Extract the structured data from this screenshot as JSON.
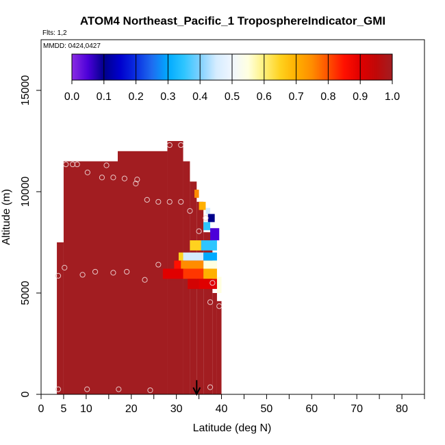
{
  "chart_data": {
    "type": "heatmap",
    "title": "ATOM4 Northeast_Pacific_1 TroposphereIndicator_GMI",
    "flights_label": "Flts: 1,2",
    "dates_label": "MMDD: 0424,0427",
    "xlabel": "Latitude (deg N)",
    "ylabel": "Altitude (m)",
    "xlim": [
      0,
      85
    ],
    "ylim": [
      0,
      17500
    ],
    "x_ticks": [
      0,
      5,
      10,
      20,
      30,
      40,
      50,
      60,
      70,
      80
    ],
    "x_minor_ticks": [
      15,
      25,
      35,
      45,
      55,
      65,
      75,
      85
    ],
    "y_ticks": [
      0,
      5000,
      10000,
      15000
    ],
    "colorbar": {
      "ticks": [
        "0.0",
        "0.1",
        "0.2",
        "0.3",
        "0.4",
        "0.5",
        "0.6",
        "0.7",
        "0.8",
        "0.9",
        "1.0"
      ],
      "range": [
        0,
        1
      ],
      "placement": "top inside plot"
    },
    "background_value": 1.0,
    "profiles": [
      {
        "lat_min": 3.5,
        "lat_max": 5.0,
        "alt_min": 0,
        "alt_max": 7500,
        "value": 1.0
      },
      {
        "lat_min": 5.0,
        "lat_max": 17.0,
        "alt_min": 0,
        "alt_max": 11500,
        "value": 1.0
      },
      {
        "lat_min": 17.0,
        "lat_max": 28.0,
        "alt_min": 0,
        "alt_max": 12000,
        "value": 1.0
      },
      {
        "lat_min": 28.0,
        "lat_max": 31.5,
        "alt_min": 0,
        "alt_max": 12500,
        "value": 1.0
      },
      {
        "lat_min": 31.5,
        "lat_max": 33.0,
        "alt_min": 0,
        "alt_max": 11500,
        "value": 1.0
      },
      {
        "lat_min": 33.0,
        "lat_max": 34.5,
        "alt_min": 0,
        "alt_max": 10500,
        "value": 1.0
      },
      {
        "lat_min": 34.5,
        "lat_max": 36.0,
        "alt_min": 0,
        "alt_max": 9500,
        "value": 1.0
      },
      {
        "lat_min": 36.0,
        "lat_max": 38.0,
        "alt_min": 0,
        "alt_max": 8000,
        "value": 1.0
      },
      {
        "lat_min": 38.0,
        "lat_max": 39.0,
        "alt_min": 0,
        "alt_max": 5000,
        "value": 1.0
      },
      {
        "lat_min": 39.0,
        "lat_max": 40.0,
        "alt_min": 0,
        "alt_max": 4600,
        "value": 1.0
      }
    ],
    "cells": [
      {
        "lat_min": 34.0,
        "lat_max": 35.0,
        "alt_min": 9700,
        "alt_max": 10100,
        "value": 0.75
      },
      {
        "lat_min": 35.0,
        "lat_max": 36.5,
        "alt_min": 9100,
        "alt_max": 9500,
        "value": 0.7
      },
      {
        "lat_min": 36.5,
        "lat_max": 37.5,
        "alt_min": 8900,
        "alt_max": 9200,
        "value": 0.45
      },
      {
        "lat_min": 37.0,
        "lat_max": 38.5,
        "alt_min": 8500,
        "alt_max": 8900,
        "value": 0.1
      },
      {
        "lat_min": 36.0,
        "lat_max": 37.5,
        "alt_min": 8100,
        "alt_max": 8500,
        "value": 0.35
      },
      {
        "lat_min": 37.5,
        "lat_max": 39.5,
        "alt_min": 7600,
        "alt_max": 8200,
        "value": 0.05
      },
      {
        "lat_min": 33.0,
        "lat_max": 35.5,
        "alt_min": 7100,
        "alt_max": 7600,
        "value": 0.65
      },
      {
        "lat_min": 35.5,
        "lat_max": 39.0,
        "alt_min": 7100,
        "alt_max": 7600,
        "value": 0.35
      },
      {
        "lat_min": 30.5,
        "lat_max": 31.5,
        "alt_min": 6600,
        "alt_max": 7000,
        "value": 0.65
      },
      {
        "lat_min": 31.5,
        "lat_max": 36.0,
        "alt_min": 6600,
        "alt_max": 7000,
        "value": 0.45
      },
      {
        "lat_min": 36.0,
        "lat_max": 39.0,
        "alt_min": 6600,
        "alt_max": 7000,
        "value": 0.3
      },
      {
        "lat_min": 29.5,
        "lat_max": 31.0,
        "alt_min": 6200,
        "alt_max": 6600,
        "value": 0.85
      },
      {
        "lat_min": 31.0,
        "lat_max": 36.0,
        "alt_min": 6200,
        "alt_max": 6600,
        "value": 0.75
      },
      {
        "lat_min": 36.0,
        "lat_max": 39.0,
        "alt_min": 6200,
        "alt_max": 6600,
        "value": 0.55
      },
      {
        "lat_min": 27.0,
        "lat_max": 31.5,
        "alt_min": 5700,
        "alt_max": 6200,
        "value": 0.9
      },
      {
        "lat_min": 31.5,
        "lat_max": 36.0,
        "alt_min": 5700,
        "alt_max": 6200,
        "value": 0.82
      },
      {
        "lat_min": 36.0,
        "lat_max": 39.0,
        "alt_min": 5700,
        "alt_max": 6200,
        "value": 0.7
      },
      {
        "lat_min": 32.5,
        "lat_max": 35.0,
        "alt_min": 5200,
        "alt_max": 5700,
        "value": 0.92
      },
      {
        "lat_min": 35.0,
        "lat_max": 39.5,
        "alt_min": 5200,
        "alt_max": 5700,
        "value": 0.9
      },
      {
        "lat_min": 39.0,
        "lat_max": 40.0,
        "alt_min": 5000,
        "alt_max": 5800,
        "value": 0.55
      }
    ],
    "points": [
      {
        "lat": 3.8,
        "alt": 250
      },
      {
        "lat": 10.2,
        "alt": 250
      },
      {
        "lat": 17.2,
        "alt": 250
      },
      {
        "lat": 24.2,
        "alt": 200
      },
      {
        "lat": 37.5,
        "alt": 350
      },
      {
        "lat": 3.8,
        "alt": 5850
      },
      {
        "lat": 5.2,
        "alt": 6250
      },
      {
        "lat": 9.2,
        "alt": 5900
      },
      {
        "lat": 12.0,
        "alt": 6050
      },
      {
        "lat": 16.0,
        "alt": 6000
      },
      {
        "lat": 19.0,
        "alt": 6050
      },
      {
        "lat": 23.0,
        "alt": 5650
      },
      {
        "lat": 26.0,
        "alt": 6400
      },
      {
        "lat": 37.5,
        "alt": 4550
      },
      {
        "lat": 38.0,
        "alt": 5500
      },
      {
        "lat": 39.5,
        "alt": 4350
      },
      {
        "lat": 5.5,
        "alt": 11350
      },
      {
        "lat": 7.0,
        "alt": 11350
      },
      {
        "lat": 8.0,
        "alt": 11350
      },
      {
        "lat": 10.3,
        "alt": 10950
      },
      {
        "lat": 13.5,
        "alt": 10700
      },
      {
        "lat": 14.5,
        "alt": 11300
      },
      {
        "lat": 16.0,
        "alt": 10700
      },
      {
        "lat": 18.5,
        "alt": 10650
      },
      {
        "lat": 21.0,
        "alt": 10400
      },
      {
        "lat": 21.3,
        "alt": 10600
      },
      {
        "lat": 23.5,
        "alt": 9600
      },
      {
        "lat": 26.0,
        "alt": 9500
      },
      {
        "lat": 28.5,
        "alt": 9500
      },
      {
        "lat": 31.0,
        "alt": 9500
      },
      {
        "lat": 33.0,
        "alt": 9050
      },
      {
        "lat": 28.5,
        "alt": 12300
      },
      {
        "lat": 31.0,
        "alt": 12300
      },
      {
        "lat": 35.0,
        "alt": 8050
      },
      {
        "lat": 36.5,
        "alt": 8700
      }
    ],
    "marker": {
      "lat": 34.5,
      "alt_from": 700,
      "alt_to": 0
    }
  }
}
